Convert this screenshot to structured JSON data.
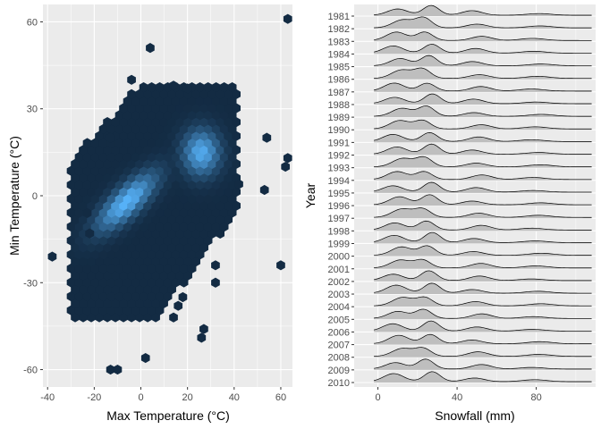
{
  "colors": {
    "panel_bg": "#ebebeb",
    "grid_major": "#ffffff",
    "hex_low": "#132b43",
    "hex_high": "#56b1f7",
    "ridge_fill": "#bebebe",
    "ridge_line": "#000000",
    "tick_text": "#4d4d4d"
  },
  "chart_data": [
    {
      "type": "heatmap",
      "subtype": "hexbin",
      "xlabel": "Max Temperature (°C)",
      "ylabel": "Min Temperature (°C)",
      "xlim": [
        -42,
        65
      ],
      "ylim": [
        -66,
        66
      ],
      "xticks": [
        -40,
        -20,
        0,
        20,
        40,
        60
      ],
      "yticks": [
        -60,
        -30,
        0,
        30,
        60
      ],
      "xtick_labels": [
        "-40",
        "-20",
        "0",
        "20",
        "40",
        "60"
      ],
      "ytick_labels": [
        "-60",
        "-30",
        "0",
        "30",
        "60"
      ],
      "grid": true,
      "legend": "none",
      "main_cloud": {
        "x_center": 8,
        "y_center": -2,
        "spread_major": 30,
        "spread_minor": 10,
        "slope": 0.65,
        "core_x": -6,
        "core_y": -2,
        "secondary_peak_x": 26,
        "secondary_peak_y": 15
      },
      "outlier_points": [
        {
          "x": 63,
          "y": 61
        },
        {
          "x": 4,
          "y": 51
        },
        {
          "x": -4,
          "y": 40
        },
        {
          "x": 14,
          "y": 38
        },
        {
          "x": 20,
          "y": 37
        },
        {
          "x": -13,
          "y": 20
        },
        {
          "x": 54,
          "y": 20
        },
        {
          "x": 63,
          "y": 13
        },
        {
          "x": 62,
          "y": 10
        },
        {
          "x": 42,
          "y": 4
        },
        {
          "x": 53,
          "y": 2
        },
        {
          "x": -23,
          "y": -6
        },
        {
          "x": -38,
          "y": -21
        },
        {
          "x": -22,
          "y": -13
        },
        {
          "x": 60,
          "y": -24
        },
        {
          "x": 32,
          "y": -24
        },
        {
          "x": 32,
          "y": -30
        },
        {
          "x": 18,
          "y": -35
        },
        {
          "x": 16,
          "y": -38
        },
        {
          "x": 14,
          "y": -42
        },
        {
          "x": 27,
          "y": -46
        },
        {
          "x": 26,
          "y": -49
        },
        {
          "x": 2,
          "y": -56
        },
        {
          "x": -13,
          "y": -60
        },
        {
          "x": -10,
          "y": -60
        }
      ]
    },
    {
      "type": "area",
      "subtype": "ridgeline",
      "xlabel": "Snowfall (mm)",
      "ylabel": "Year",
      "xlim": [
        -12,
        110
      ],
      "xticks": [
        0,
        40,
        80
      ],
      "xtick_labels": [
        "0",
        "40",
        "80"
      ],
      "grid": true,
      "legend": "none",
      "years": [
        "1981",
        "1982",
        "1983",
        "1984",
        "1985",
        "1986",
        "1987",
        "1988",
        "1989",
        "1990",
        "1991",
        "1992",
        "1993",
        "1994",
        "1995",
        "1996",
        "1997",
        "1998",
        "1999",
        "2000",
        "2001",
        "2002",
        "2003",
        "2004",
        "2005",
        "2006",
        "2007",
        "2008",
        "2009",
        "2010"
      ],
      "density_components": [
        {
          "mean": 10,
          "sd": 5,
          "weight": 1.0
        },
        {
          "mean": 25,
          "sd": 4,
          "weight": 1.2
        },
        {
          "mean": 50,
          "sd": 5,
          "weight": 0.55
        },
        {
          "mean": 80,
          "sd": 6,
          "weight": 0.25
        }
      ],
      "density_x_range": [
        -2,
        108
      ]
    }
  ]
}
